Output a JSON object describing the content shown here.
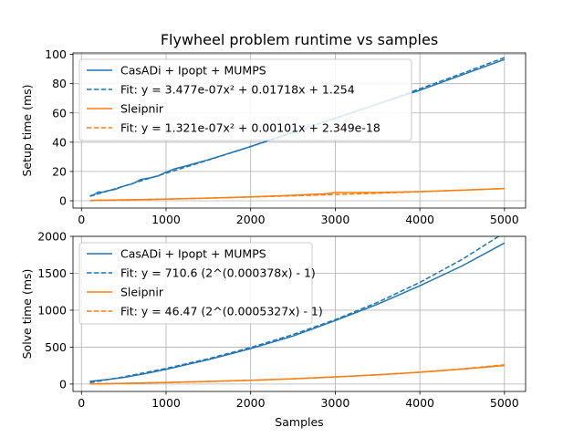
{
  "chart_data": [
    {
      "type": "line",
      "title": "Flywheel problem runtime vs samples",
      "xlabel": "",
      "ylabel": "Setup time (ms)",
      "xlim": [
        -100,
        5250
      ],
      "ylim": [
        -5,
        101
      ],
      "xticks": [
        0,
        1000,
        2000,
        3000,
        4000,
        5000
      ],
      "yticks": [
        0,
        20,
        40,
        60,
        80,
        100
      ],
      "grid": true,
      "legend_position": "upper-left",
      "series": [
        {
          "name": "CasADi + Ipopt + MUMPS",
          "style": "solid",
          "color": "#1f77b4",
          "x": [
            100,
            150,
            200,
            250,
            300,
            400,
            500,
            600,
            700,
            800,
            900,
            1000,
            1100,
            1200,
            1500,
            2000,
            2500,
            3000,
            3500,
            4000,
            4500,
            5000
          ],
          "y": [
            3.3,
            4.2,
            6.0,
            5.8,
            6.7,
            7.8,
            10.0,
            11.5,
            14.5,
            15.5,
            16.8,
            19.5,
            21.8,
            23.2,
            28.0,
            37.0,
            47.0,
            56.5,
            66.0,
            75.5,
            86.0,
            96.5
          ]
        },
        {
          "name": "Fit: y = 3.477e-07x² + 0.01718x + 1.254",
          "style": "dashed",
          "color": "#1f77b4",
          "x": [
            100,
            500,
            1000,
            1500,
            2000,
            2500,
            3000,
            3500,
            4000,
            4500,
            5000
          ],
          "y": [
            2.98,
            10.0,
            18.8,
            27.8,
            37.0,
            46.4,
            56.2,
            66.1,
            76.5,
            87.0,
            97.8
          ]
        },
        {
          "name": "Sleipnir",
          "style": "solid",
          "color": "#ff7f0e",
          "x": [
            100,
            500,
            1000,
            1500,
            2000,
            2500,
            2900,
            3000,
            3500,
            4000,
            4500,
            5000
          ],
          "y": [
            0.2,
            0.6,
            1.1,
            1.8,
            2.6,
            3.7,
            4.8,
            5.6,
            5.7,
            6.2,
            7.2,
            8.3
          ]
        },
        {
          "name": "Fit: y = 1.321e-07x² + 0.00101x + 2.349e-18",
          "style": "dashed",
          "color": "#ff7f0e",
          "x": [
            100,
            500,
            1000,
            1500,
            2000,
            2500,
            3000,
            3500,
            4000,
            4500,
            5000
          ],
          "y": [
            0.1,
            0.54,
            1.14,
            1.81,
            2.55,
            3.35,
            4.22,
            5.15,
            6.15,
            7.22,
            8.35
          ]
        }
      ]
    },
    {
      "type": "line",
      "title": "",
      "xlabel": "Samples",
      "ylabel": "Solve time (ms)",
      "xlim": [
        -100,
        5250
      ],
      "ylim": [
        -100,
        2000
      ],
      "xticks": [
        0,
        1000,
        2000,
        3000,
        4000,
        5000
      ],
      "yticks": [
        0,
        500,
        1000,
        1500,
        2000
      ],
      "grid": true,
      "legend_position": "upper-left",
      "series": [
        {
          "name": "CasADi + Ipopt + MUMPS",
          "style": "solid",
          "color": "#1f77b4",
          "x": [
            100,
            300,
            500,
            750,
            1000,
            1500,
            2000,
            2500,
            3000,
            3500,
            4000,
            4500,
            5000
          ],
          "y": [
            38,
            60,
            90,
            140,
            200,
            330,
            480,
            650,
            860,
            1080,
            1330,
            1600,
            1910
          ]
        },
        {
          "name": "Fit: y = 710.6 (2^(0.000378x) - 1)",
          "style": "dashed",
          "color": "#1f77b4",
          "x": [
            100,
            500,
            1000,
            1500,
            2000,
            2500,
            3000,
            3500,
            4000,
            4500,
            5000
          ],
          "y": [
            18.8,
            98,
            212,
            343,
            495,
            670,
            872,
            1106,
            1376,
            1688,
            2049
          ]
        },
        {
          "name": "Sleipnir",
          "style": "solid",
          "color": "#ff7f0e",
          "x": [
            100,
            500,
            1000,
            1500,
            2000,
            2500,
            3000,
            3500,
            4000,
            4500,
            5000
          ],
          "y": [
            2,
            10,
            22,
            36,
            52,
            72,
            97,
            125,
            160,
            203,
            251
          ]
        },
        {
          "name": "Fit: y = 46.47 (2^(0.0005327x) - 1)",
          "style": "dashed",
          "color": "#ff7f0e",
          "x": [
            100,
            500,
            1000,
            1500,
            2000,
            2500,
            3000,
            3500,
            4000,
            4500,
            5000
          ],
          "y": [
            1.7,
            9.1,
            20.3,
            34.0,
            50.6,
            70.8,
            95.5,
            125.5,
            162,
            206,
            260
          ]
        }
      ]
    }
  ]
}
